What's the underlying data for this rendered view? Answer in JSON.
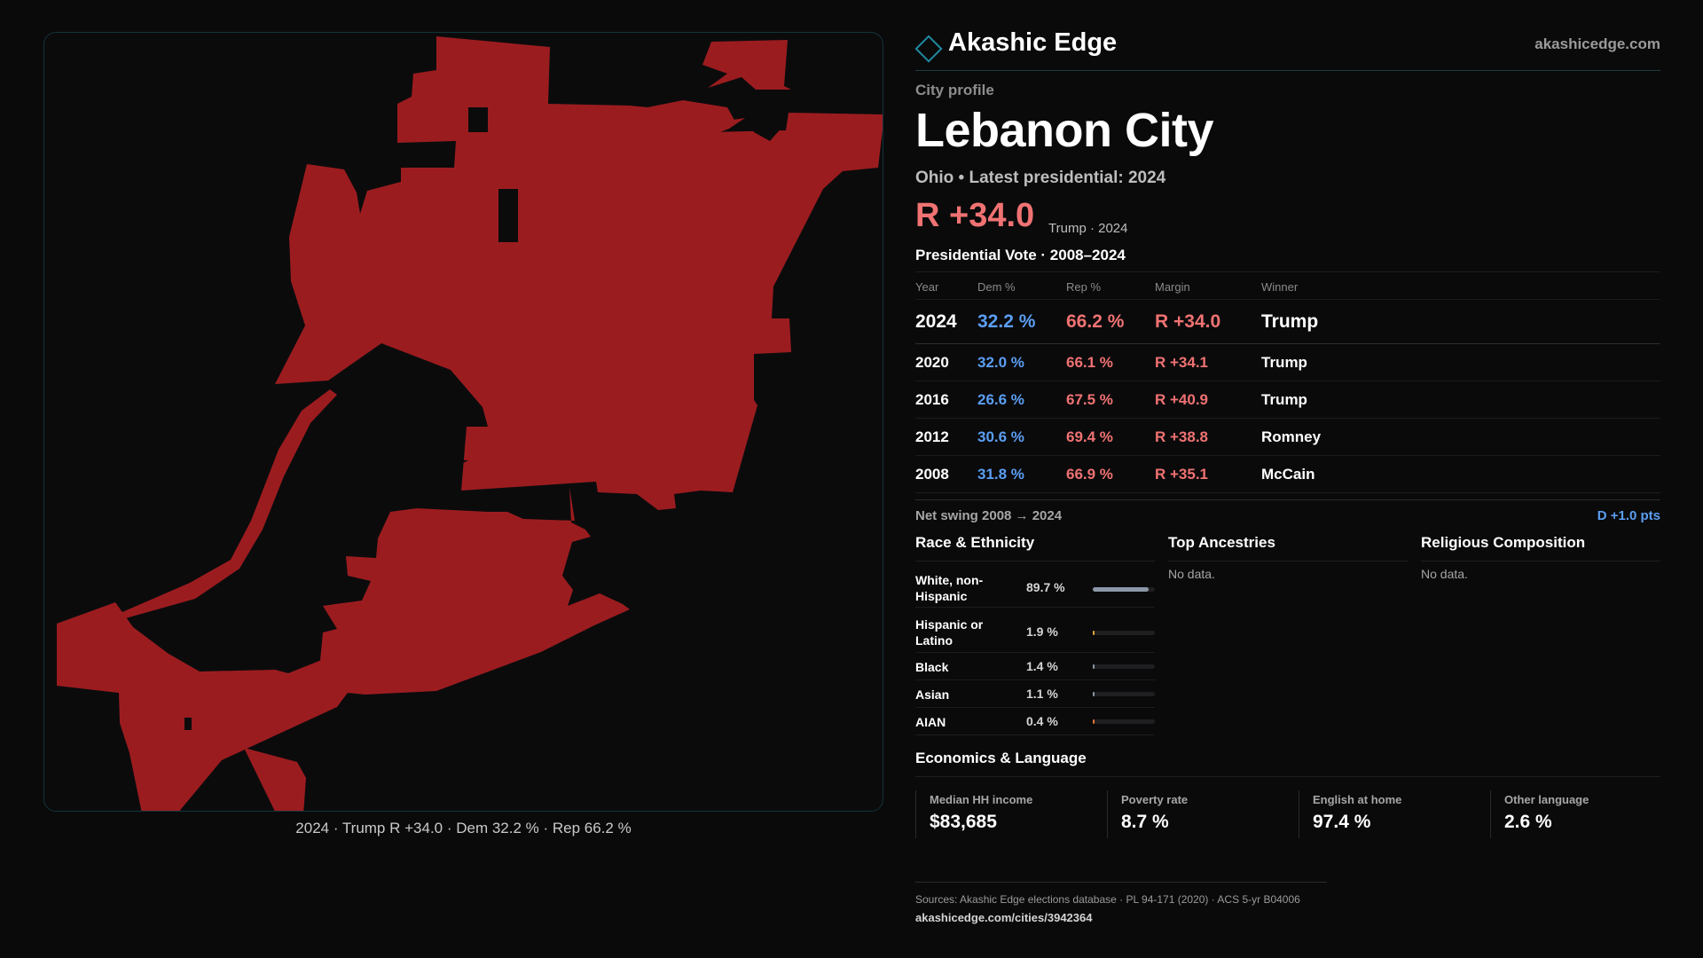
{
  "map": {
    "fill_color": "#9b1c1f",
    "caption": "2024 · Trump R +34.0 · Dem 32.2 % · Rep 66.2 %"
  },
  "brand": {
    "name": "Akashic Edge",
    "site": "akashicedge.com",
    "logo_icon": "diamond-logo-icon",
    "accent": "#1f8aa0"
  },
  "profile": {
    "kicker": "City profile",
    "city": "Lebanon City",
    "subline": "Ohio • Latest presidential: 2024",
    "margin": "R +34.0",
    "margin_note": "Trump · 2024",
    "rep_color": "#f07272",
    "dem_color": "#5b9ef2"
  },
  "presidential": {
    "title": "Presidential Vote · 2008–2024",
    "headers": [
      "Year",
      "Dem %",
      "Rep %",
      "Margin",
      "Winner"
    ],
    "rows": [
      {
        "year": "2024",
        "dem": "32.2 %",
        "rep": "66.2 %",
        "margin": "R +34.0",
        "winner": "Trump"
      },
      {
        "year": "2020",
        "dem": "32.0 %",
        "rep": "66.1 %",
        "margin": "R +34.1",
        "winner": "Trump"
      },
      {
        "year": "2016",
        "dem": "26.6 %",
        "rep": "67.5 %",
        "margin": "R +40.9",
        "winner": "Trump"
      },
      {
        "year": "2012",
        "dem": "30.6 %",
        "rep": "69.4 %",
        "margin": "R +38.8",
        "winner": "Romney"
      },
      {
        "year": "2008",
        "dem": "31.8 %",
        "rep": "66.9 %",
        "margin": "R +35.1",
        "winner": "McCain"
      }
    ],
    "swing_label": "Net swing 2008 → 2024",
    "swing_value": "D +1.0 pts"
  },
  "race": {
    "title": "Race & Ethnicity",
    "rows": [
      {
        "label": "White, non-Hispanic",
        "value": "89.7 %",
        "share": 0.897,
        "color": "#8c97a8"
      },
      {
        "label": "Hispanic or Latino",
        "value": "1.9 %",
        "share": 0.019,
        "color": "#e0a23a"
      },
      {
        "label": "Black",
        "value": "1.4 %",
        "share": 0.014,
        "color": "#8c97a8"
      },
      {
        "label": "Asian",
        "value": "1.1 %",
        "share": 0.011,
        "color": "#8c97a8"
      },
      {
        "label": "AIAN",
        "value": "0.4 %",
        "share": 0.004,
        "color": "#e0773a"
      }
    ]
  },
  "ancestries": {
    "title": "Top Ancestries",
    "empty": "No data."
  },
  "religion": {
    "title": "Religious Composition",
    "empty": "No data."
  },
  "economics": {
    "title": "Economics & Language",
    "cells": [
      {
        "label": "Median HH income",
        "value": "$83,685"
      },
      {
        "label": "Poverty rate",
        "value": "8.7 %"
      },
      {
        "label": "English at home",
        "value": "97.4 %"
      },
      {
        "label": "Other language",
        "value": "2.6 %"
      }
    ]
  },
  "sources": {
    "line1": "Sources: Akashic Edge elections database · PL 94-171 (2020) · ACS 5-yr B04006",
    "line2": "akashicedge.com/cities/3942364"
  }
}
